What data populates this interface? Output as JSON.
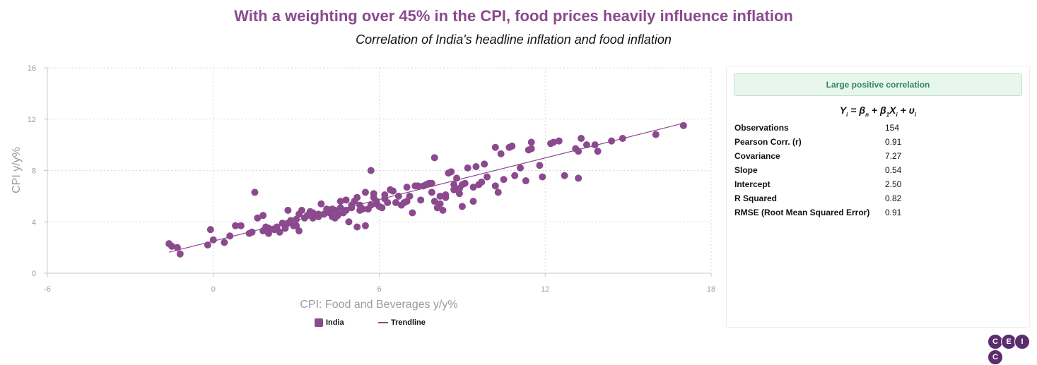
{
  "header": {
    "title": "With a weighting over 45% in the CPI, food prices heavily influence inflation",
    "subtitle": "Correlation of India's headline inflation and food inflation"
  },
  "colors": {
    "series": "#8b4a8e",
    "title": "#8b4a8e",
    "badge_text": "#2e8b57",
    "badge_bg": "#e9f6ee"
  },
  "chart_data": {
    "type": "scatter",
    "title": "With a weighting over 45% in the CPI, food prices heavily influence inflation",
    "subtitle": "Correlation of India's headline inflation and food inflation",
    "xlabel": "CPI: Food and Beverages y/y%",
    "ylabel": "CPI y/y%",
    "xlim": [
      -6,
      18
    ],
    "ylim": [
      0,
      16
    ],
    "xticks": [
      -6,
      0,
      6,
      12,
      18
    ],
    "yticks": [
      0,
      4,
      8,
      12,
      16
    ],
    "grid": true,
    "legend_position": "bottom",
    "series": [
      {
        "name": "India",
        "kind": "points",
        "points": [
          [
            -1.6,
            2.3
          ],
          [
            -1.5,
            2.1
          ],
          [
            -1.3,
            2.0
          ],
          [
            -1.2,
            1.5
          ],
          [
            -0.2,
            2.2
          ],
          [
            -0.1,
            3.4
          ],
          [
            0.0,
            2.6
          ],
          [
            0.4,
            2.4
          ],
          [
            0.6,
            2.9
          ],
          [
            0.8,
            3.7
          ],
          [
            1.0,
            3.7
          ],
          [
            1.3,
            3.1
          ],
          [
            1.4,
            3.2
          ],
          [
            1.5,
            6.3
          ],
          [
            1.6,
            4.3
          ],
          [
            1.8,
            3.3
          ],
          [
            1.8,
            4.5
          ],
          [
            2.0,
            3.5
          ],
          [
            2.0,
            3.1
          ],
          [
            2.2,
            3.4
          ],
          [
            2.3,
            3.6
          ],
          [
            2.4,
            3.2
          ],
          [
            2.6,
            3.7
          ],
          [
            2.6,
            3.5
          ],
          [
            2.7,
            3.9
          ],
          [
            2.7,
            4.9
          ],
          [
            2.8,
            4.1
          ],
          [
            2.9,
            3.7
          ],
          [
            3.0,
            3.7
          ],
          [
            3.1,
            3.3
          ],
          [
            3.1,
            4.6
          ],
          [
            3.2,
            4.9
          ],
          [
            3.3,
            4.3
          ],
          [
            3.4,
            4.5
          ],
          [
            3.5,
            4.8
          ],
          [
            3.6,
            4.3
          ],
          [
            3.8,
            4.4
          ],
          [
            3.9,
            5.4
          ],
          [
            4.0,
            4.6
          ],
          [
            4.2,
            4.7
          ],
          [
            4.3,
            4.4
          ],
          [
            4.3,
            5.0
          ],
          [
            4.4,
            4.3
          ],
          [
            4.4,
            4.9
          ],
          [
            4.5,
            4.6
          ],
          [
            4.6,
            5.6
          ],
          [
            4.6,
            5.1
          ],
          [
            4.7,
            4.7
          ],
          [
            4.8,
            5.7
          ],
          [
            4.8,
            4.9
          ],
          [
            4.9,
            4.0
          ],
          [
            5.0,
            5.1
          ],
          [
            5.0,
            5.3
          ],
          [
            5.1,
            5.6
          ],
          [
            5.2,
            3.6
          ],
          [
            5.2,
            5.9
          ],
          [
            5.3,
            5.3
          ],
          [
            5.4,
            5.0
          ],
          [
            5.5,
            6.3
          ],
          [
            5.5,
            3.7
          ],
          [
            5.6,
            5.0
          ],
          [
            5.7,
            8.0
          ],
          [
            5.7,
            5.3
          ],
          [
            5.8,
            6.2
          ],
          [
            5.8,
            5.9
          ],
          [
            5.9,
            5.4
          ],
          [
            6.0,
            5.2
          ],
          [
            6.1,
            5.1
          ],
          [
            6.2,
            5.8
          ],
          [
            6.3,
            5.5
          ],
          [
            6.4,
            6.5
          ],
          [
            6.5,
            6.4
          ],
          [
            6.6,
            5.5
          ],
          [
            6.7,
            6.0
          ],
          [
            6.8,
            5.3
          ],
          [
            7.0,
            6.7
          ],
          [
            7.0,
            5.6
          ],
          [
            7.2,
            4.7
          ],
          [
            7.4,
            6.8
          ],
          [
            7.5,
            5.7
          ],
          [
            7.6,
            6.8
          ],
          [
            7.7,
            6.9
          ],
          [
            7.8,
            7.0
          ],
          [
            7.9,
            7.0
          ],
          [
            8.0,
            9.0
          ],
          [
            8.0,
            5.6
          ],
          [
            8.1,
            5.1
          ],
          [
            8.2,
            5.4
          ],
          [
            8.2,
            6.0
          ],
          [
            8.3,
            4.9
          ],
          [
            8.4,
            5.9
          ],
          [
            8.5,
            7.8
          ],
          [
            8.6,
            7.9
          ],
          [
            8.7,
            6.9
          ],
          [
            8.8,
            7.4
          ],
          [
            8.9,
            6.6
          ],
          [
            9.0,
            5.2
          ],
          [
            9.1,
            7.0
          ],
          [
            9.2,
            8.2
          ],
          [
            9.4,
            5.6
          ],
          [
            9.4,
            6.7
          ],
          [
            9.5,
            8.3
          ],
          [
            9.6,
            6.9
          ],
          [
            9.8,
            8.5
          ],
          [
            10.2,
            9.8
          ],
          [
            10.2,
            6.8
          ],
          [
            10.3,
            6.3
          ],
          [
            10.4,
            9.3
          ],
          [
            10.5,
            7.3
          ],
          [
            10.7,
            9.8
          ],
          [
            10.9,
            7.6
          ],
          [
            11.1,
            8.2
          ],
          [
            11.3,
            7.2
          ],
          [
            11.4,
            9.6
          ],
          [
            11.5,
            10.2
          ],
          [
            11.5,
            9.7
          ],
          [
            11.8,
            8.4
          ],
          [
            12.3,
            10.2
          ],
          [
            12.5,
            10.3
          ],
          [
            12.7,
            7.6
          ],
          [
            13.2,
            7.4
          ],
          [
            13.2,
            9.5
          ],
          [
            13.1,
            9.7
          ],
          [
            13.3,
            10.5
          ],
          [
            13.5,
            10.0
          ],
          [
            13.8,
            10.0
          ],
          [
            13.9,
            9.5
          ],
          [
            14.4,
            10.3
          ],
          [
            14.8,
            10.5
          ],
          [
            16.0,
            10.8
          ],
          [
            17.0,
            11.5
          ],
          [
            7.3,
            6.8
          ],
          [
            6.2,
            6.1
          ],
          [
            5.9,
            5.6
          ],
          [
            4.1,
            5.0
          ],
          [
            3.8,
            4.6
          ],
          [
            3.0,
            4.2
          ],
          [
            2.5,
            3.9
          ],
          [
            1.9,
            3.6
          ],
          [
            9.7,
            7.1
          ],
          [
            8.9,
            6.2
          ],
          [
            8.7,
            6.5
          ],
          [
            7.9,
            6.3
          ],
          [
            7.1,
            6.0
          ],
          [
            6.9,
            5.5
          ],
          [
            5.3,
            4.9
          ],
          [
            4.5,
            4.5
          ],
          [
            3.6,
            4.7
          ],
          [
            11.9,
            7.5
          ],
          [
            12.2,
            10.1
          ],
          [
            10.8,
            9.9
          ],
          [
            9.9,
            7.5
          ],
          [
            9.0,
            6.9
          ],
          [
            8.4,
            6.1
          ]
        ]
      },
      {
        "name": "Trendline",
        "kind": "line",
        "x": [
          -1.6,
          17.0
        ],
        "y": [
          1.64,
          11.68
        ]
      }
    ],
    "legend": [
      "India",
      "Trendline"
    ]
  },
  "stats": {
    "badge": "Large positive correlation",
    "formula": {
      "Y": "Y",
      "eq": "=",
      "b0": "β",
      "plus1": "+",
      "b1": "β",
      "X": "X",
      "plus2": "+",
      "u": "υ"
    },
    "rows": [
      {
        "label": "Observations",
        "value": "154"
      },
      {
        "label": "Pearson Corr. (r)",
        "value": "0.91"
      },
      {
        "label": "Covariance",
        "value": "7.27"
      },
      {
        "label": "Slope",
        "value": "0.54"
      },
      {
        "label": "Intercept",
        "value": "2.50"
      },
      {
        "label": "R Squared",
        "value": "0.82"
      },
      {
        "label": "RMSE (Root Mean Squared Error)",
        "value": "0.91"
      }
    ]
  },
  "legend": {
    "india": "India",
    "trendline": "Trendline"
  },
  "logo": {
    "letters": [
      "C",
      "E",
      "I",
      "C"
    ]
  }
}
